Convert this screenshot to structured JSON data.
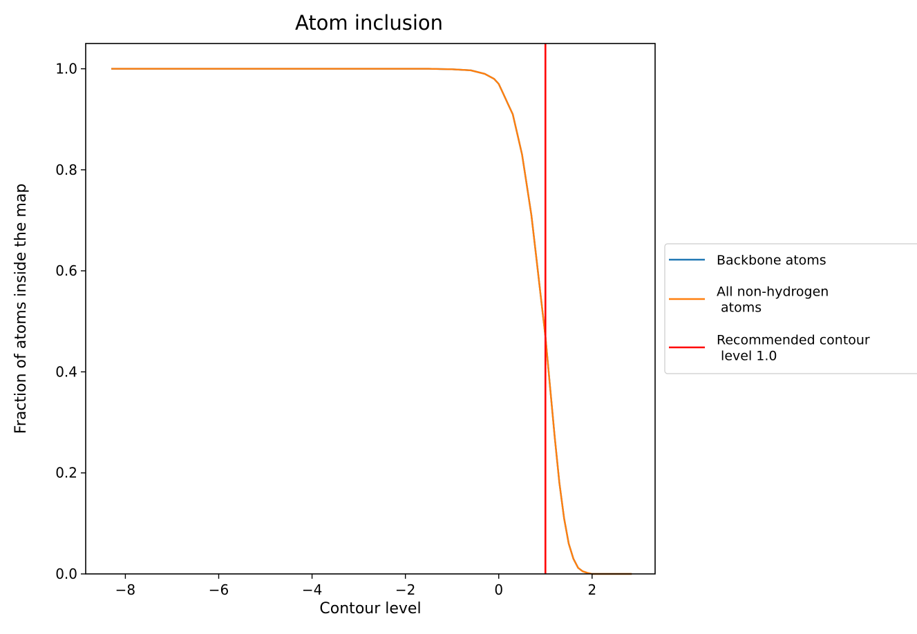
{
  "chart_data": {
    "type": "line",
    "title": "Atom inclusion",
    "xlabel": "Contour level",
    "ylabel": "Fraction of atoms inside the map",
    "xlim": [
      -8.85,
      3.35
    ],
    "ylim": [
      0.0,
      1.05
    ],
    "xticks": [
      -8,
      -6,
      -4,
      -2,
      0,
      2
    ],
    "xtick_labels": [
      "−8",
      "−6",
      "−4",
      "−2",
      "0",
      "2"
    ],
    "yticks": [
      0.0,
      0.2,
      0.4,
      0.6,
      0.8,
      1.0
    ],
    "ytick_labels": [
      "0.0",
      "0.2",
      "0.4",
      "0.6",
      "0.8",
      "1.0"
    ],
    "grid": false,
    "legend_position": "outside-right",
    "series": [
      {
        "name": "Backbone atoms",
        "color": "#1f77b4",
        "x": [
          -8.3,
          -6.0,
          -4.0,
          -2.0,
          -1.5,
          -1.0,
          -0.6,
          -0.3,
          -0.1,
          0.0,
          0.1,
          0.2,
          0.3,
          0.4,
          0.5,
          0.6,
          0.7,
          0.8,
          0.9,
          1.0,
          1.1,
          1.2,
          1.3,
          1.4,
          1.5,
          1.6,
          1.7,
          1.8,
          1.9,
          2.0,
          2.2,
          2.5,
          2.85
        ],
        "y": [
          1.0,
          1.0,
          1.0,
          1.0,
          1.0,
          0.999,
          0.997,
          0.99,
          0.98,
          0.97,
          0.95,
          0.93,
          0.91,
          0.87,
          0.83,
          0.77,
          0.71,
          0.63,
          0.55,
          0.47,
          0.37,
          0.27,
          0.18,
          0.11,
          0.06,
          0.03,
          0.012,
          0.005,
          0.002,
          0.0,
          0.0,
          0.0,
          0.0
        ]
      },
      {
        "name": "All non-hydrogen\n atoms",
        "color": "#ff7f0e",
        "x": [
          -8.3,
          -6.0,
          -4.0,
          -2.0,
          -1.5,
          -1.0,
          -0.6,
          -0.3,
          -0.1,
          0.0,
          0.1,
          0.2,
          0.3,
          0.4,
          0.5,
          0.6,
          0.7,
          0.8,
          0.9,
          1.0,
          1.1,
          1.2,
          1.3,
          1.4,
          1.5,
          1.6,
          1.7,
          1.8,
          1.9,
          2.0,
          2.2,
          2.5,
          2.85
        ],
        "y": [
          1.0,
          1.0,
          1.0,
          1.0,
          1.0,
          0.999,
          0.997,
          0.99,
          0.98,
          0.97,
          0.95,
          0.93,
          0.91,
          0.87,
          0.83,
          0.77,
          0.71,
          0.63,
          0.55,
          0.47,
          0.37,
          0.27,
          0.18,
          0.11,
          0.06,
          0.03,
          0.012,
          0.005,
          0.002,
          0.0,
          0.0,
          0.0,
          0.0
        ]
      }
    ],
    "vline": {
      "name": "Recommended contour\n level 1.0",
      "x": 1.0,
      "color": "#ff0000"
    }
  }
}
